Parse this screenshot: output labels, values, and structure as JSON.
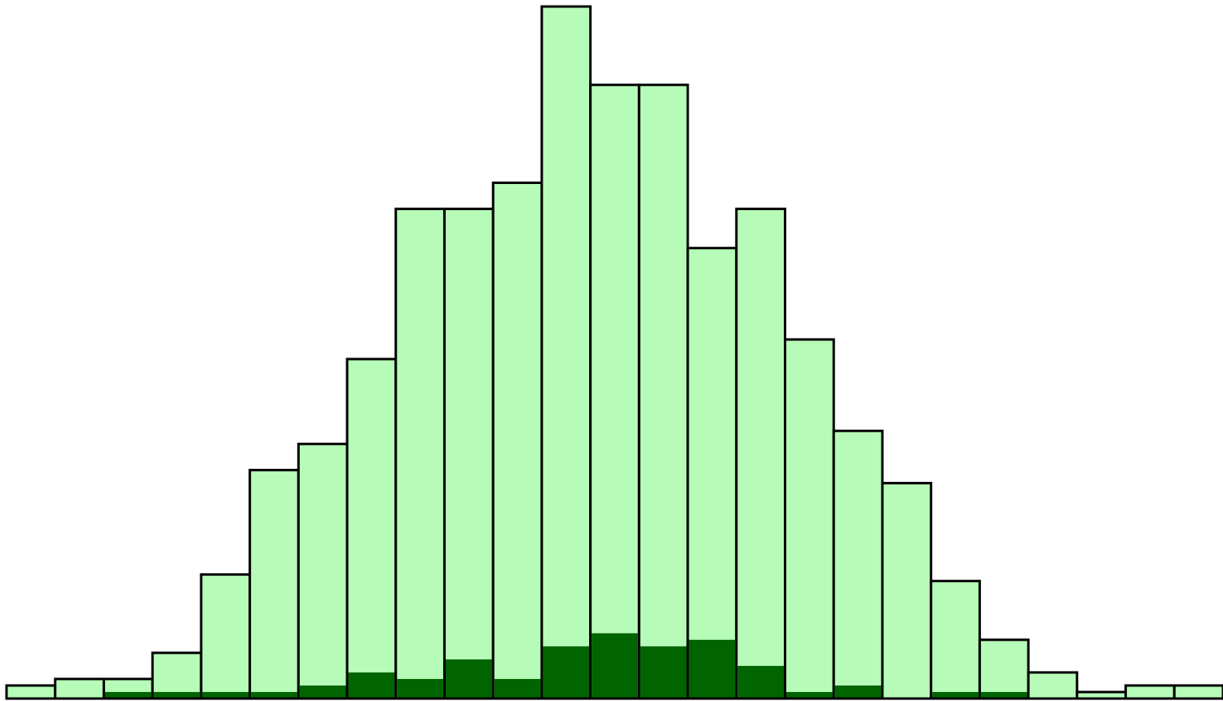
{
  "chart_data": {
    "type": "bar",
    "title": "",
    "xlabel": "",
    "ylabel": "",
    "ylim": [
      0,
      106
    ],
    "bins": 25,
    "series": [
      {
        "values": [
          2,
          3,
          3,
          7,
          19,
          35,
          39,
          52,
          75,
          75,
          79,
          106,
          94,
          94,
          69,
          75,
          55,
          41,
          33,
          18,
          9,
          4,
          1,
          2,
          2
        ],
        "color": "#b6fbb7"
      },
      {
        "values": [
          0,
          0,
          1,
          1,
          1,
          1,
          2,
          4,
          3,
          6,
          3,
          8,
          10,
          8,
          9,
          5,
          1,
          2,
          0,
          1,
          1,
          0,
          0,
          0,
          0
        ],
        "color": "#006400"
      }
    ]
  }
}
